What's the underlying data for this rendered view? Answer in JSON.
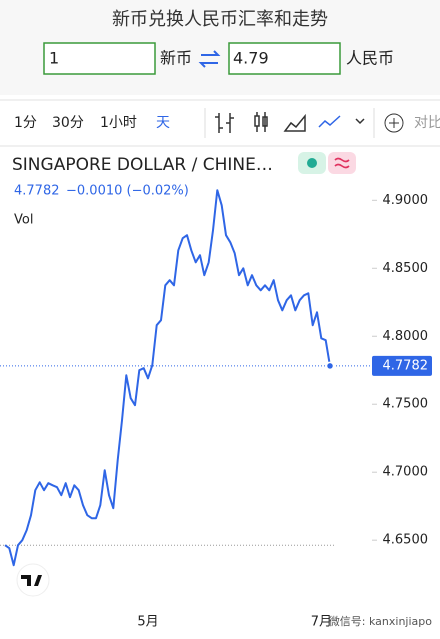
{
  "header": {
    "title": "新币兑换人民币汇率和走势"
  },
  "converter": {
    "amount": "1",
    "from": "新币",
    "result": "4.79",
    "to": "人民币"
  },
  "toolbar": {
    "intervals": [
      "1分",
      "30分",
      "1小时",
      "天"
    ],
    "compare": "对比"
  },
  "watermark": "微信号: kanxinjiapo",
  "chart_data": {
    "type": "line",
    "title": "SINGAPORE DOLLAR / CHINE…",
    "price": "4.7782",
    "change": "−0.0010 (−0.02%)",
    "volume_label": "Vol",
    "categories": [
      null,
      null,
      null,
      null,
      null,
      null,
      null,
      null,
      null,
      null,
      null,
      null,
      null,
      null,
      null,
      null,
      null,
      null,
      null,
      null,
      null,
      null,
      null,
      null,
      null,
      null,
      null,
      null,
      null,
      null,
      null,
      null,
      null,
      "5月",
      null,
      null,
      null,
      null,
      null,
      null,
      null,
      null,
      null,
      null,
      null,
      null,
      null,
      null,
      null,
      null,
      null,
      null,
      null,
      null,
      null,
      null,
      null,
      null,
      null,
      null,
      null,
      null,
      null,
      null,
      null,
      null,
      null,
      null,
      null,
      null,
      null,
      null,
      null,
      "7月",
      null,
      null
    ],
    "series": [
      {
        "name": "SINGAPORE DOLLAR / CHINE…",
        "color": "#2f66e6",
        "values": [
          4.6463,
          4.6441,
          4.6316,
          4.6463,
          4.65,
          4.6574,
          4.6684,
          4.6868,
          4.6926,
          4.6868,
          4.6919,
          4.6904,
          4.689,
          4.6831,
          4.6919,
          4.6816,
          4.6904,
          4.6868,
          4.6757,
          4.6684,
          4.6662,
          4.6662,
          4.6757,
          4.7015,
          4.6831,
          4.6735,
          4.7088,
          4.7382,
          4.7713,
          4.7544,
          4.7493,
          4.775,
          4.7765,
          4.7691,
          4.7787,
          4.8081,
          4.8118,
          4.8375,
          4.8412,
          4.8375,
          4.8632,
          4.8721,
          4.8743,
          4.8632,
          4.8544,
          4.8596,
          4.8449,
          4.8544,
          4.8779,
          4.9074,
          4.8963,
          4.8743,
          4.8691,
          4.861,
          4.8449,
          4.85,
          4.8375,
          4.8449,
          4.8375,
          4.8338,
          4.8375,
          4.8338,
          4.8412,
          4.8265,
          4.8191,
          4.8265,
          4.8301,
          4.8191,
          4.8265,
          4.8301,
          4.8316,
          4.8081,
          4.8176,
          4.7985,
          4.7971,
          4.7782
        ]
      }
    ],
    "last_value_label": "4.7782",
    "reference_line": 4.6463,
    "ylim": [
      4.606,
      4.937
    ],
    "yticks": [
      {
        "value": 4.65,
        "label": "4.6500"
      },
      {
        "value": 4.7,
        "label": "4.7000"
      },
      {
        "value": 4.75,
        "label": "4.7500"
      },
      {
        "value": 4.8,
        "label": "4.8000"
      },
      {
        "value": 4.85,
        "label": "4.8500"
      },
      {
        "value": 4.9,
        "label": "4.9000"
      }
    ]
  }
}
